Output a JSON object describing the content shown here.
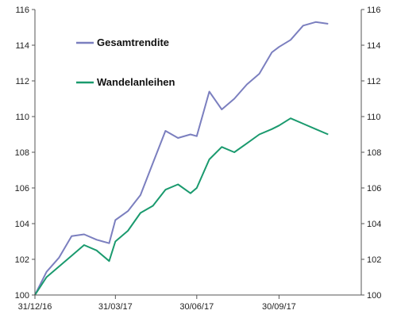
{
  "chart_data": {
    "type": "line",
    "title": "",
    "xlabel": "",
    "ylabel": "",
    "x_ticks": [
      "31/12/16",
      "31/03/17",
      "30/06/17",
      "30/09/17"
    ],
    "y_ticks": [
      "100",
      "102",
      "104",
      "106",
      "108",
      "110",
      "112",
      "114",
      "116"
    ],
    "ylim": [
      100,
      116
    ],
    "grid": false,
    "legend_placement": "top-left",
    "dual_y_axis": true,
    "series": [
      {
        "name": "Gesamtrendite",
        "color": "#7b7fbf",
        "x": [
          "31/12/16",
          "13/01/17",
          "27/01/17",
          "10/02/17",
          "24/02/17",
          "10/03/17",
          "24/03/17",
          "31/03/17",
          "14/04/17",
          "28/04/17",
          "12/05/17",
          "26/05/17",
          "09/06/17",
          "23/06/17",
          "30/06/17",
          "14/07/17",
          "28/07/17",
          "11/08/17",
          "25/08/17",
          "08/09/17",
          "22/09/17",
          "30/09/17",
          "13/10/17",
          "27/10/17",
          "10/11/17",
          "24/11/17"
        ],
        "values": [
          100.0,
          101.3,
          102.1,
          103.3,
          103.4,
          103.1,
          102.9,
          104.2,
          104.7,
          105.6,
          107.4,
          109.2,
          108.8,
          109.0,
          108.9,
          111.4,
          110.4,
          111.0,
          111.8,
          112.4,
          113.6,
          113.9,
          114.3,
          115.1,
          115.3,
          115.2
        ]
      },
      {
        "name": "Wandelanleihen",
        "color": "#1a9a6e",
        "x": [
          "31/12/16",
          "13/01/17",
          "27/01/17",
          "10/02/17",
          "24/02/17",
          "10/03/17",
          "24/03/17",
          "31/03/17",
          "14/04/17",
          "28/04/17",
          "12/05/17",
          "26/05/17",
          "09/06/17",
          "23/06/17",
          "30/06/17",
          "14/07/17",
          "28/07/17",
          "11/08/17",
          "25/08/17",
          "08/09/17",
          "22/09/17",
          "30/09/17",
          "13/10/17",
          "27/10/17",
          "10/11/17",
          "24/11/17"
        ],
        "values": [
          100.0,
          101.0,
          101.6,
          102.2,
          102.8,
          102.5,
          101.9,
          103.0,
          103.6,
          104.6,
          105.0,
          105.9,
          106.2,
          105.7,
          106.0,
          107.6,
          108.3,
          108.0,
          108.5,
          109.0,
          109.3,
          109.5,
          109.9,
          109.6,
          109.3,
          109.0
        ]
      }
    ]
  }
}
